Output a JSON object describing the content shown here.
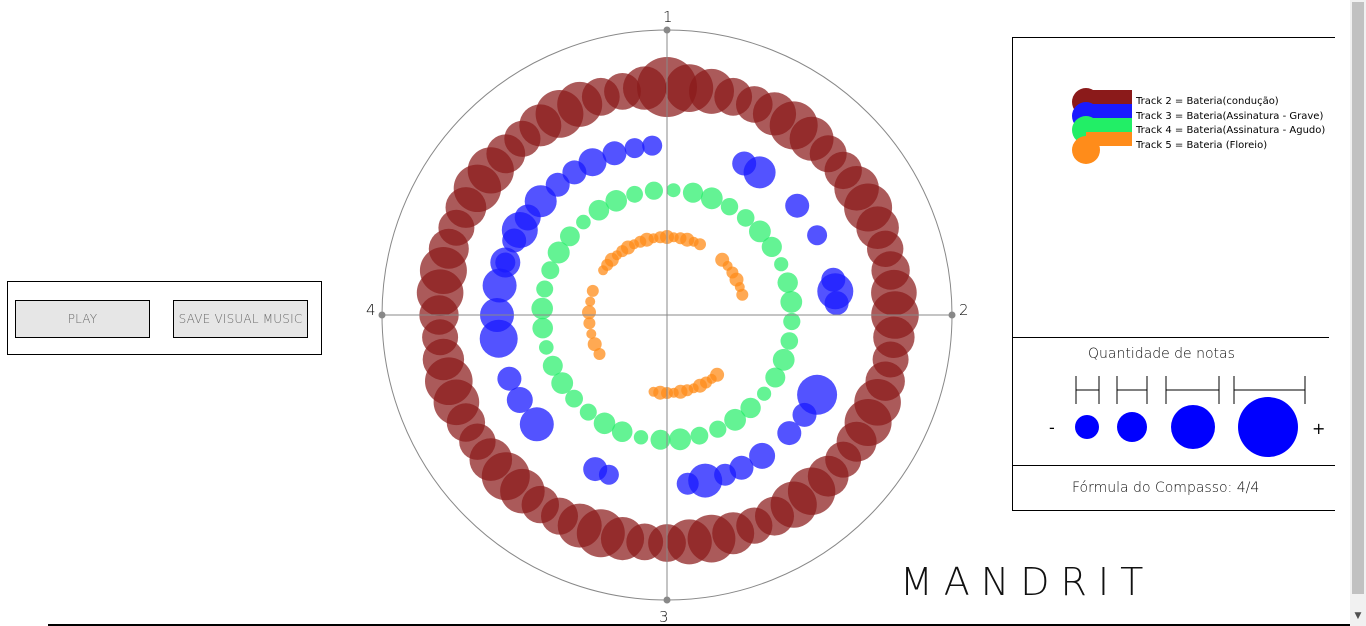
{
  "controls": {
    "play_label": "PLAY",
    "save_label": "SAVE VISUAL MUSIC"
  },
  "dial": {
    "labels": [
      "1",
      "2",
      "3",
      "4"
    ]
  },
  "legend": {
    "tracks": [
      {
        "label": "Track 2 = Bateria(condução)",
        "color": "#8b1a1a"
      },
      {
        "label": "Track 3 = Bateria(Assinatura - Grave)",
        "color": "#1a1aff"
      },
      {
        "label": "Track 4 = Bateria(Assinatura - Agudo)",
        "color": "#22ee66"
      },
      {
        "label": "Track 5 = Bateria (Floreio)",
        "color": "#ff8c1a"
      }
    ]
  },
  "quantity": {
    "title": "Quantidade de notas",
    "minus": "-",
    "plus": "+",
    "sample_color": "#0000ff"
  },
  "formula": {
    "text": "Fórmula do Compasso: 4/4"
  },
  "brand": "MANDRIT",
  "colors": {
    "track2": "#8b1a1a",
    "track3": "#1a1aff",
    "track4": "#22ee66",
    "track5": "#ff8c1a"
  }
}
